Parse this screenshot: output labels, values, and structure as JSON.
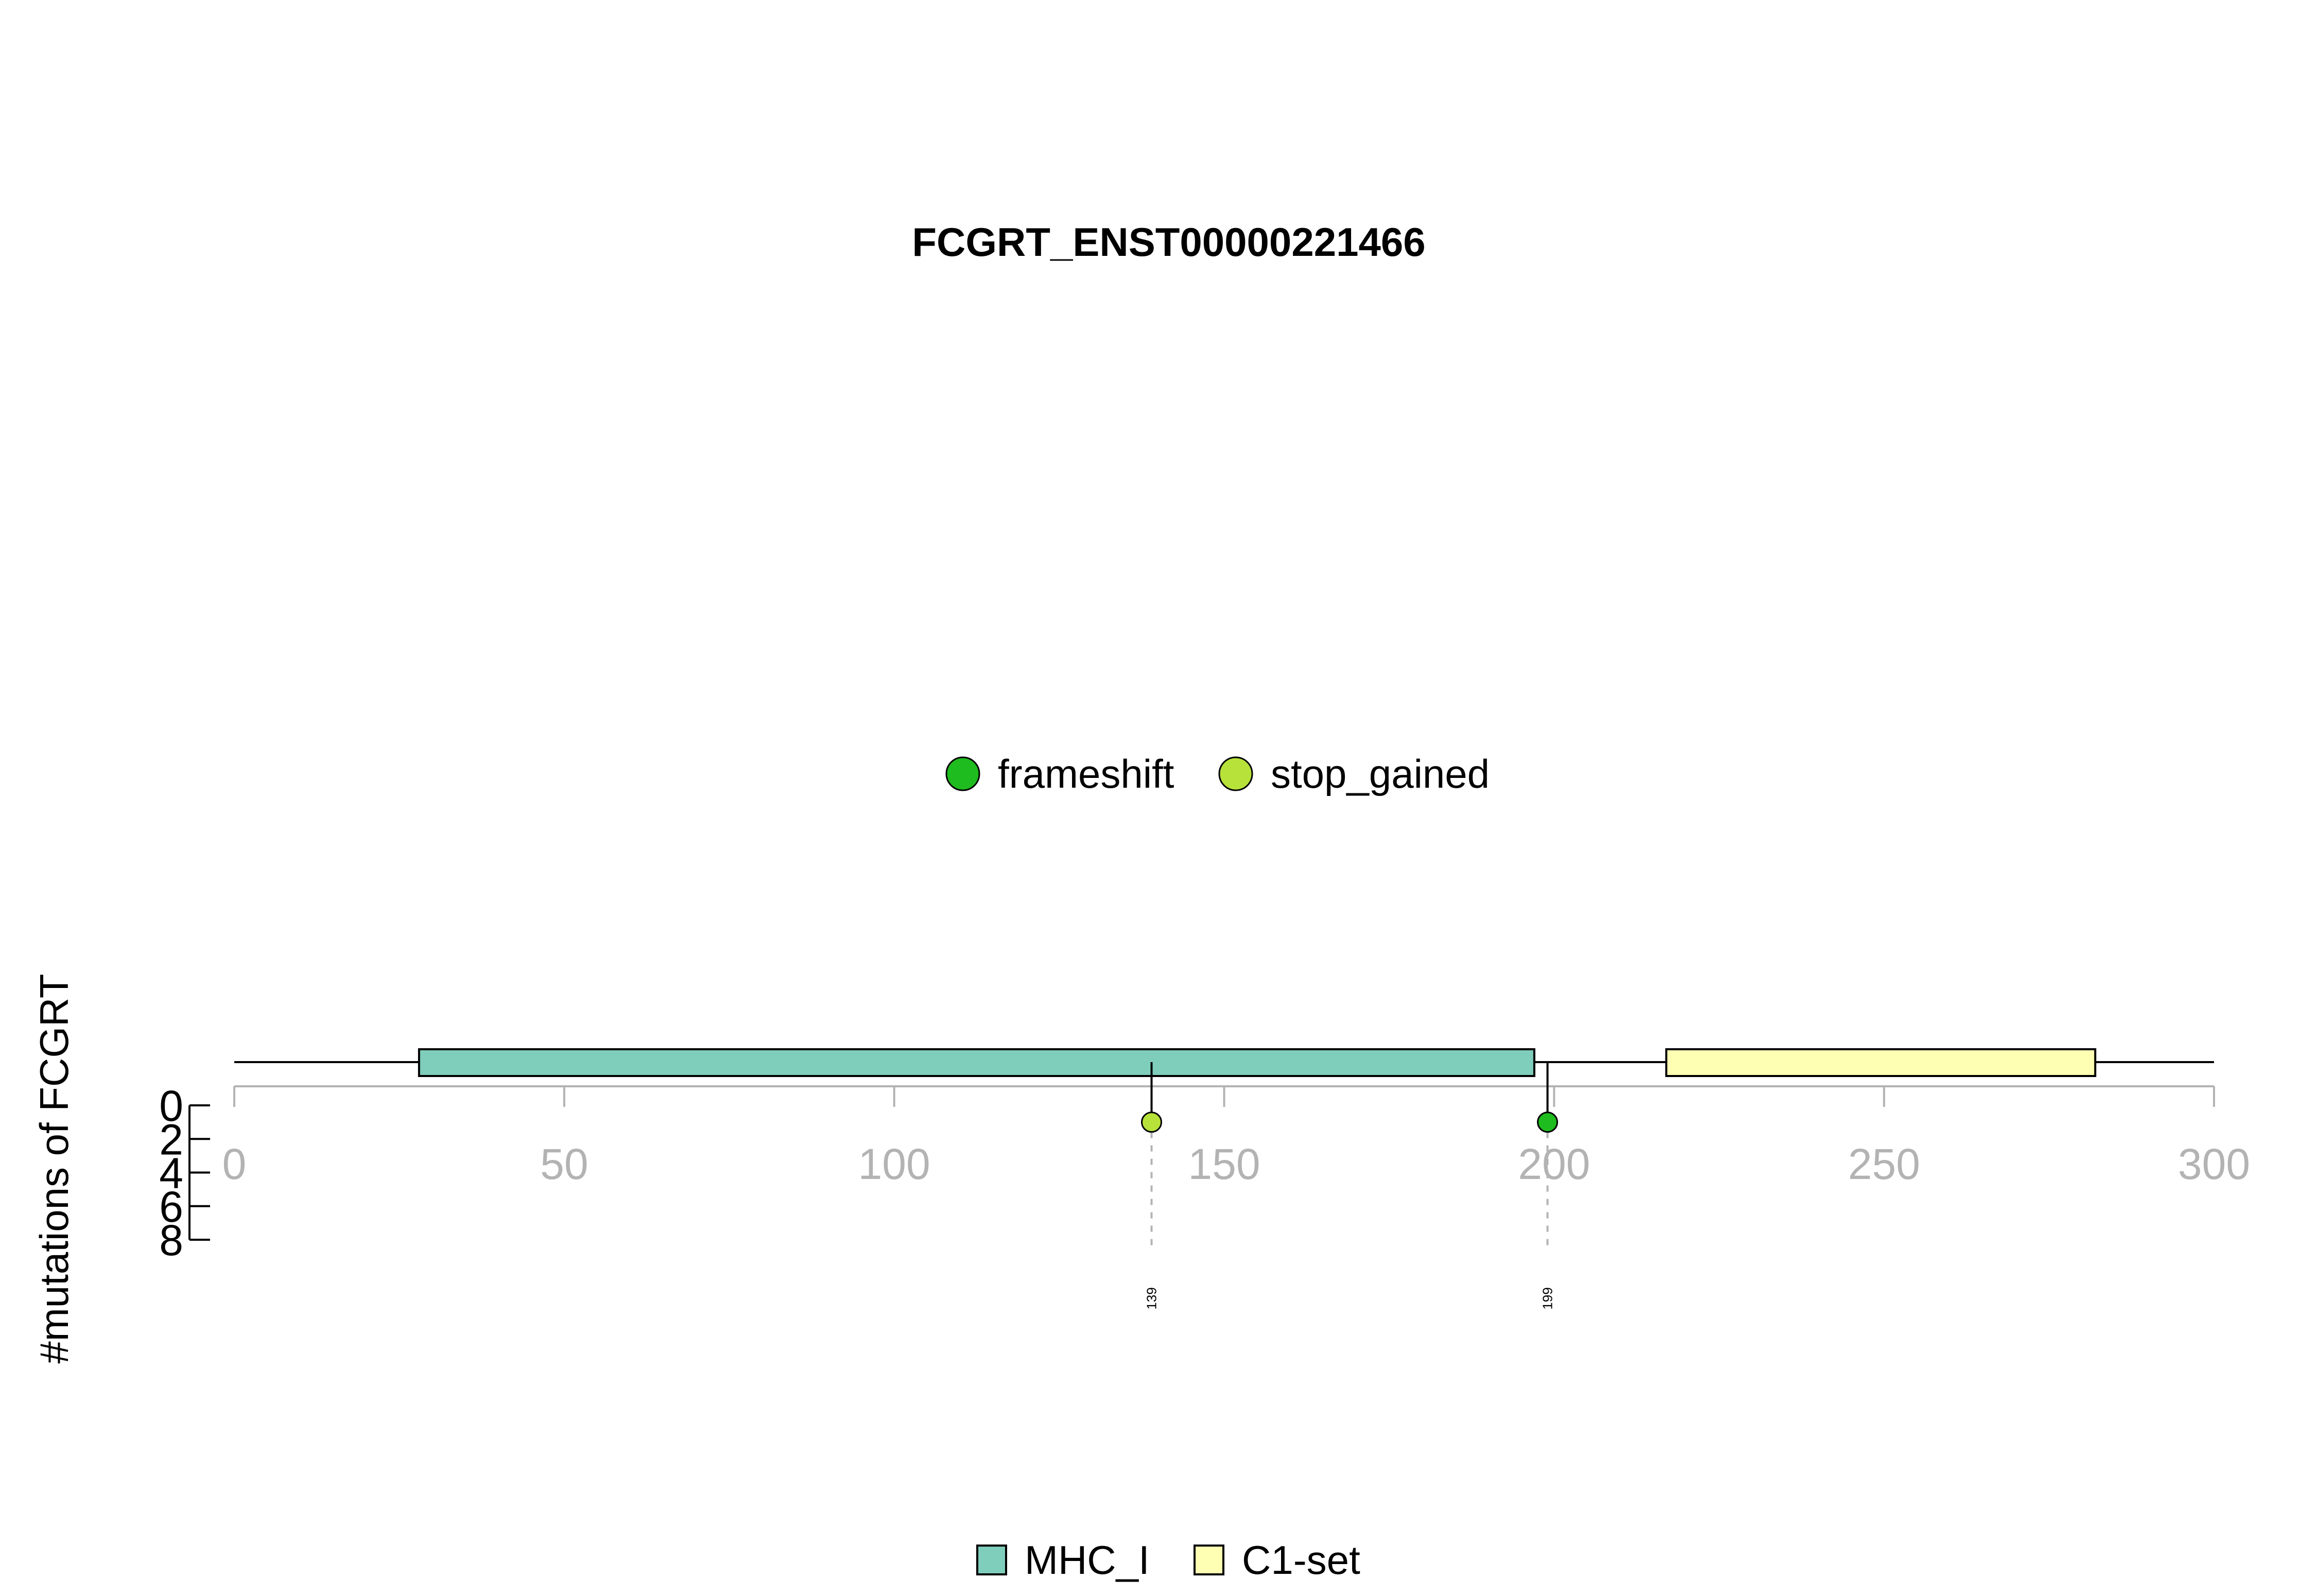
{
  "chart_data": {
    "type": "lollipop",
    "title": "FCGRT_ENST00000221466",
    "ylabel": "#mutations of FCGRT",
    "xlim": [
      0,
      300
    ],
    "x_ticks": [
      "0",
      "50",
      "100",
      "150",
      "200",
      "250",
      "300"
    ],
    "y_ticks": [
      "0",
      "2",
      "4",
      "6",
      "8"
    ],
    "protein_length": 300,
    "mutation_legend": [
      {
        "label": "frameshift",
        "color": "#1ebc1e"
      },
      {
        "label": "stop_gained",
        "color": "#b7e23a"
      }
    ],
    "domain_legend": [
      {
        "label": "MHC_I",
        "color": "#7fcdbb"
      },
      {
        "label": "C1-set",
        "color": "#ffffb3"
      }
    ],
    "domains": [
      {
        "name": "MHC_I",
        "start": 28,
        "end": 197,
        "color": "#7fcdbb"
      },
      {
        "name": "C1-set",
        "start": 217,
        "end": 282,
        "color": "#ffffb3"
      }
    ],
    "mutations": [
      {
        "position": 139,
        "position_label": "139",
        "count": 1,
        "type": "stop_gained",
        "color": "#b7e23a"
      },
      {
        "position": 199,
        "position_label": "199",
        "count": 1,
        "type": "frameshift",
        "color": "#1ebc1e"
      }
    ]
  }
}
